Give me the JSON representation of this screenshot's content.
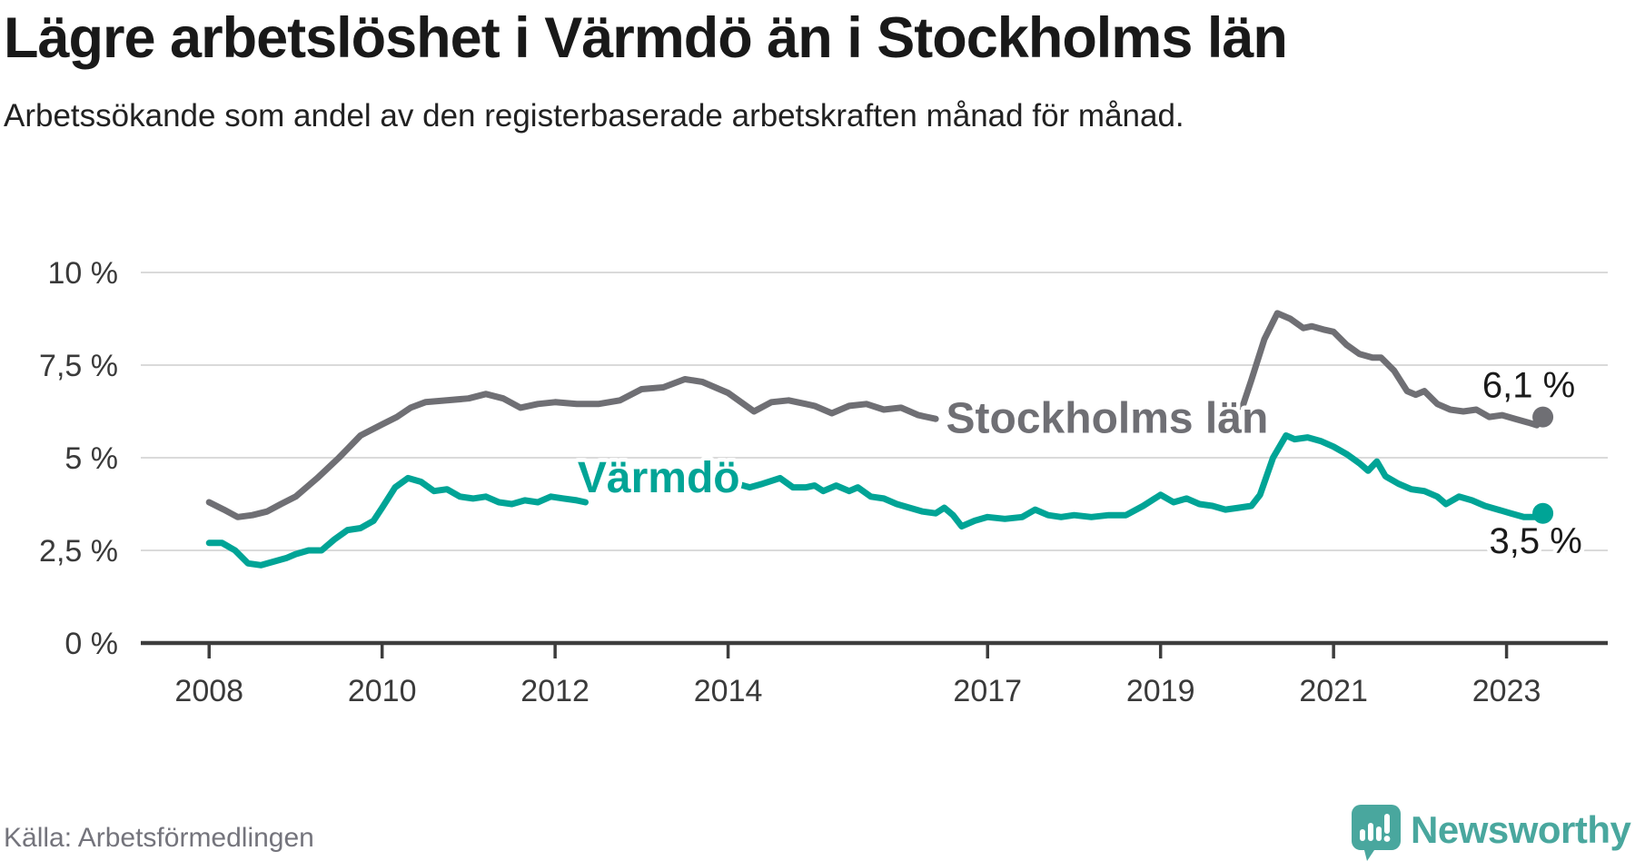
{
  "header": {
    "title": "Lägre arbetslöshet i Värmdö än i Stockholms län",
    "subtitle": "Arbetssökande som andel av den registerbaserade arbetskraften månad för månad."
  },
  "footer": {
    "source": "Källa: Arbetsförmedlingen",
    "brand": "Newsworthy"
  },
  "colors": {
    "stockholm": "#6f6f74",
    "varmdo": "#00a496",
    "value_label": "#1a1a1a",
    "grid": "#dadada",
    "axis": "#3d3d3d",
    "brand_teal": "#49a79e"
  },
  "chart_data": {
    "type": "line",
    "unit": "%",
    "x_range": [
      2007.21,
      2024.17
    ],
    "y_range": [
      0,
      10
    ],
    "grid": true,
    "x_ticks": [
      2008,
      2010,
      2012,
      2014,
      2017,
      2019,
      2021,
      2023
    ],
    "y_ticks": [
      {
        "value": 10,
        "label": "10 %"
      },
      {
        "value": 7.5,
        "label": "7,5 %"
      },
      {
        "value": 5,
        "label": "5 %"
      },
      {
        "value": 2.5,
        "label": "2,5 %"
      },
      {
        "value": 0,
        "label": "0 %"
      }
    ],
    "series": [
      {
        "name": "Stockholms län",
        "color_key": "stockholm",
        "end_value_label": "6,1 %",
        "end_dot": [
          2023.42,
          6.1
        ],
        "segments": [
          [
            [
              2008.0,
              3.8
            ],
            [
              2008.17,
              3.6
            ],
            [
              2008.33,
              3.4
            ],
            [
              2008.5,
              3.45
            ],
            [
              2008.67,
              3.55
            ],
            [
              2008.83,
              3.75
            ],
            [
              2009.0,
              3.95
            ],
            [
              2009.25,
              4.45
            ],
            [
              2009.5,
              5.0
            ],
            [
              2009.75,
              5.6
            ],
            [
              2010.0,
              5.9
            ],
            [
              2010.17,
              6.1
            ],
            [
              2010.33,
              6.35
            ],
            [
              2010.5,
              6.5
            ],
            [
              2010.75,
              6.55
            ],
            [
              2011.0,
              6.6
            ],
            [
              2011.2,
              6.72
            ],
            [
              2011.4,
              6.6
            ],
            [
              2011.6,
              6.35
            ],
            [
              2011.8,
              6.45
            ],
            [
              2012.0,
              6.5
            ],
            [
              2012.25,
              6.45
            ],
            [
              2012.5,
              6.45
            ],
            [
              2012.75,
              6.55
            ],
            [
              2013.0,
              6.85
            ],
            [
              2013.25,
              6.9
            ],
            [
              2013.5,
              7.12
            ],
            [
              2013.7,
              7.05
            ],
            [
              2014.0,
              6.75
            ],
            [
              2014.3,
              6.25
            ],
            [
              2014.5,
              6.5
            ],
            [
              2014.7,
              6.55
            ],
            [
              2014.9,
              6.45
            ],
            [
              2015.0,
              6.4
            ],
            [
              2015.2,
              6.2
            ],
            [
              2015.4,
              6.4
            ],
            [
              2015.6,
              6.45
            ],
            [
              2015.8,
              6.3
            ],
            [
              2016.0,
              6.35
            ],
            [
              2016.2,
              6.15
            ],
            [
              2016.4,
              6.05
            ]
          ],
          [
            [
              2019.68,
              6.1
            ],
            [
              2019.8,
              6.25
            ],
            [
              2019.95,
              6.4
            ],
            [
              2020.05,
              7.1
            ],
            [
              2020.2,
              8.2
            ],
            [
              2020.35,
              8.9
            ],
            [
              2020.5,
              8.75
            ],
            [
              2020.65,
              8.5
            ],
            [
              2020.75,
              8.55
            ],
            [
              2020.9,
              8.45
            ],
            [
              2021.0,
              8.4
            ],
            [
              2021.15,
              8.05
            ],
            [
              2021.3,
              7.8
            ],
            [
              2021.45,
              7.7
            ],
            [
              2021.55,
              7.7
            ],
            [
              2021.7,
              7.35
            ],
            [
              2021.85,
              6.8
            ],
            [
              2021.95,
              6.7
            ],
            [
              2022.05,
              6.8
            ],
            [
              2022.2,
              6.45
            ],
            [
              2022.35,
              6.3
            ],
            [
              2022.5,
              6.25
            ],
            [
              2022.65,
              6.3
            ],
            [
              2022.8,
              6.1
            ],
            [
              2022.95,
              6.15
            ],
            [
              2023.1,
              6.05
            ],
            [
              2023.25,
              5.95
            ],
            [
              2023.35,
              5.88
            ],
            [
              2023.42,
              6.1
            ]
          ]
        ]
      },
      {
        "name": "Värmdö",
        "color_key": "varmdo",
        "end_value_label": "3,5 %",
        "end_dot": [
          2023.42,
          3.5
        ],
        "segments": [
          [
            [
              2008.0,
              2.7
            ],
            [
              2008.15,
              2.7
            ],
            [
              2008.3,
              2.5
            ],
            [
              2008.45,
              2.15
            ],
            [
              2008.6,
              2.1
            ],
            [
              2008.75,
              2.2
            ],
            [
              2008.9,
              2.3
            ],
            [
              2009.0,
              2.4
            ],
            [
              2009.15,
              2.5
            ],
            [
              2009.3,
              2.5
            ],
            [
              2009.45,
              2.8
            ],
            [
              2009.6,
              3.05
            ],
            [
              2009.75,
              3.1
            ],
            [
              2009.9,
              3.3
            ],
            [
              2010.0,
              3.65
            ],
            [
              2010.15,
              4.2
            ],
            [
              2010.3,
              4.45
            ],
            [
              2010.45,
              4.35
            ],
            [
              2010.6,
              4.1
            ],
            [
              2010.75,
              4.15
            ],
            [
              2010.9,
              3.95
            ],
            [
              2011.05,
              3.9
            ],
            [
              2011.2,
              3.95
            ],
            [
              2011.35,
              3.8
            ],
            [
              2011.5,
              3.75
            ],
            [
              2011.65,
              3.85
            ],
            [
              2011.8,
              3.8
            ],
            [
              2011.95,
              3.95
            ],
            [
              2012.1,
              3.9
            ],
            [
              2012.25,
              3.85
            ],
            [
              2012.35,
              3.8
            ]
          ],
          [
            [
              2014.1,
              4.3
            ],
            [
              2014.25,
              4.2
            ],
            [
              2014.4,
              4.3
            ],
            [
              2014.6,
              4.45
            ],
            [
              2014.75,
              4.2
            ],
            [
              2014.9,
              4.2
            ],
            [
              2015.0,
              4.25
            ],
            [
              2015.1,
              4.1
            ],
            [
              2015.25,
              4.25
            ],
            [
              2015.4,
              4.1
            ],
            [
              2015.5,
              4.2
            ],
            [
              2015.65,
              3.95
            ],
            [
              2015.8,
              3.9
            ],
            [
              2015.95,
              3.75
            ],
            [
              2016.1,
              3.65
            ],
            [
              2016.25,
              3.55
            ],
            [
              2016.4,
              3.5
            ],
            [
              2016.5,
              3.65
            ],
            [
              2016.6,
              3.45
            ],
            [
              2016.7,
              3.15
            ],
            [
              2016.85,
              3.3
            ],
            [
              2017.0,
              3.4
            ],
            [
              2017.2,
              3.35
            ],
            [
              2017.4,
              3.4
            ],
            [
              2017.55,
              3.6
            ],
            [
              2017.7,
              3.45
            ],
            [
              2017.85,
              3.4
            ],
            [
              2018.0,
              3.45
            ],
            [
              2018.2,
              3.4
            ],
            [
              2018.4,
              3.45
            ],
            [
              2018.6,
              3.45
            ],
            [
              2018.8,
              3.7
            ],
            [
              2019.0,
              4.0
            ],
            [
              2019.15,
              3.8
            ],
            [
              2019.3,
              3.9
            ],
            [
              2019.45,
              3.75
            ],
            [
              2019.6,
              3.7
            ],
            [
              2019.75,
              3.6
            ],
            [
              2019.9,
              3.65
            ],
            [
              2020.05,
              3.7
            ],
            [
              2020.15,
              4.0
            ],
            [
              2020.3,
              5.0
            ],
            [
              2020.45,
              5.6
            ],
            [
              2020.55,
              5.5
            ],
            [
              2020.7,
              5.55
            ],
            [
              2020.85,
              5.45
            ],
            [
              2021.0,
              5.3
            ],
            [
              2021.15,
              5.1
            ],
            [
              2021.3,
              4.85
            ],
            [
              2021.4,
              4.65
            ],
            [
              2021.5,
              4.9
            ],
            [
              2021.6,
              4.5
            ],
            [
              2021.75,
              4.3
            ],
            [
              2021.9,
              4.15
            ],
            [
              2022.05,
              4.1
            ],
            [
              2022.2,
              3.95
            ],
            [
              2022.3,
              3.75
            ],
            [
              2022.45,
              3.95
            ],
            [
              2022.6,
              3.85
            ],
            [
              2022.75,
              3.7
            ],
            [
              2022.9,
              3.6
            ],
            [
              2023.05,
              3.5
            ],
            [
              2023.2,
              3.4
            ],
            [
              2023.35,
              3.4
            ],
            [
              2023.42,
              3.5
            ]
          ]
        ]
      }
    ],
    "annotations": [
      {
        "kind": "series",
        "text": "Stockholms län",
        "color_key": "stockholm",
        "year": 2016.52,
        "value": 6.05
      },
      {
        "kind": "series",
        "text": "Värmdö",
        "color_key": "varmdo",
        "year": 2012.26,
        "value": 4.45
      },
      {
        "kind": "value",
        "text": "6,1 %",
        "color_key": "value_label",
        "year": 2022.72,
        "value": 6.95
      },
      {
        "kind": "value",
        "text": "3,5 %",
        "color_key": "value_label",
        "year": 2022.8,
        "value": 2.75
      }
    ]
  }
}
